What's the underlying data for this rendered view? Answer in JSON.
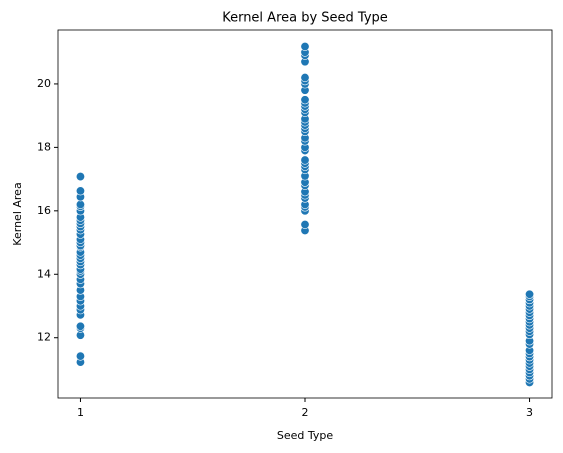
{
  "chart_data": {
    "type": "scatter",
    "title": "Kernel Area by Seed Type",
    "xlabel": "Seed Type",
    "ylabel": "Kernel Area",
    "color": "#1f77b4",
    "xlim": [
      0.9,
      3.1
    ],
    "ylim": [
      10.1,
      21.7
    ],
    "xticks": [
      1,
      2,
      3
    ],
    "yticks": [
      12,
      14,
      16,
      18,
      20
    ],
    "grid": false,
    "x": [
      1,
      1,
      1,
      1,
      1,
      1,
      1,
      1,
      1,
      1,
      1,
      1,
      1,
      1,
      1,
      1,
      1,
      1,
      1,
      1,
      1,
      1,
      1,
      1,
      1,
      1,
      1,
      1,
      1,
      1,
      1,
      1,
      1,
      1,
      1,
      1,
      1,
      2,
      2,
      2,
      2,
      2,
      2,
      2,
      2,
      2,
      2,
      2,
      2,
      2,
      2,
      2,
      2,
      2,
      2,
      2,
      2,
      2,
      2,
      2,
      2,
      2,
      2,
      2,
      2,
      2,
      2,
      2,
      2,
      2,
      2,
      2,
      2,
      2,
      3,
      3,
      3,
      3,
      3,
      3,
      3,
      3,
      3,
      3,
      3,
      3,
      3,
      3,
      3,
      3,
      3,
      3,
      3,
      3,
      3,
      3,
      3,
      3,
      3,
      3,
      3
    ],
    "y": [
      11.23,
      11.42,
      12.08,
      12.3,
      12.36,
      12.72,
      12.88,
      13.0,
      13.16,
      13.3,
      13.5,
      13.7,
      13.84,
      14.0,
      14.1,
      14.16,
      14.3,
      14.4,
      14.5,
      14.6,
      14.7,
      14.86,
      14.9,
      15.0,
      15.1,
      15.26,
      15.4,
      15.5,
      15.6,
      15.7,
      15.8,
      16.0,
      16.14,
      16.2,
      16.44,
      16.63,
      17.08,
      15.38,
      15.57,
      16.0,
      16.12,
      16.2,
      16.4,
      16.5,
      16.6,
      16.8,
      16.9,
      17.1,
      17.3,
      17.4,
      17.5,
      17.6,
      17.9,
      18.0,
      18.2,
      18.3,
      18.5,
      18.6,
      18.7,
      18.8,
      18.9,
      19.1,
      19.2,
      19.3,
      19.4,
      19.5,
      19.8,
      20.0,
      20.1,
      20.2,
      20.7,
      20.9,
      21.0,
      21.18,
      10.59,
      10.7,
      10.8,
      10.9,
      11.0,
      11.1,
      11.2,
      11.3,
      11.4,
      11.5,
      11.6,
      11.8,
      11.9,
      12.1,
      12.2,
      12.3,
      12.4,
      12.5,
      12.6,
      12.7,
      12.8,
      12.9,
      13.0,
      13.1,
      13.2,
      13.3,
      13.37
    ]
  }
}
